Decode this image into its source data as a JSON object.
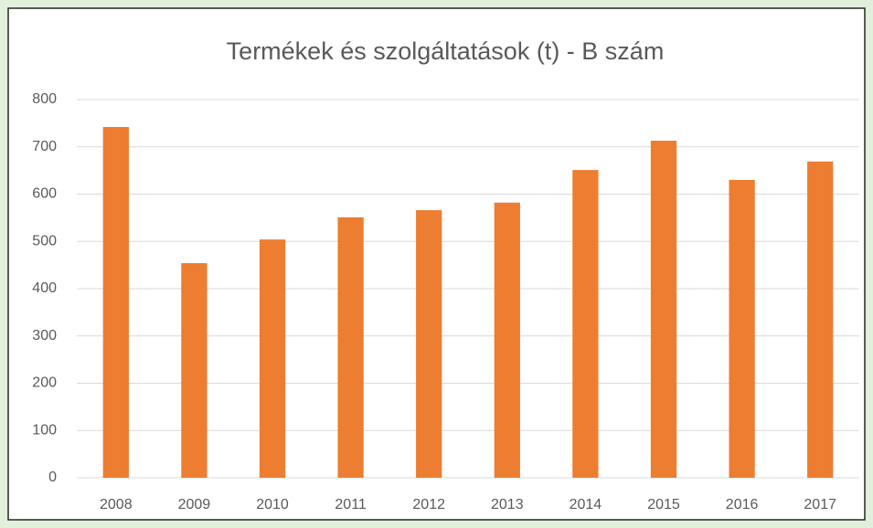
{
  "chart_data": {
    "type": "bar",
    "title": "Termékek és szolgáltatások (t) - B szám",
    "categories": [
      "2008",
      "2009",
      "2010",
      "2011",
      "2012",
      "2013",
      "2014",
      "2015",
      "2016",
      "2017"
    ],
    "values": [
      742,
      454,
      504,
      551,
      566,
      582,
      651,
      713,
      630,
      669
    ],
    "color": "#ed7d31",
    "ylim": [
      0,
      800
    ],
    "yticks": [
      0,
      100,
      200,
      300,
      400,
      500,
      600,
      700,
      800
    ],
    "grid": true
  }
}
